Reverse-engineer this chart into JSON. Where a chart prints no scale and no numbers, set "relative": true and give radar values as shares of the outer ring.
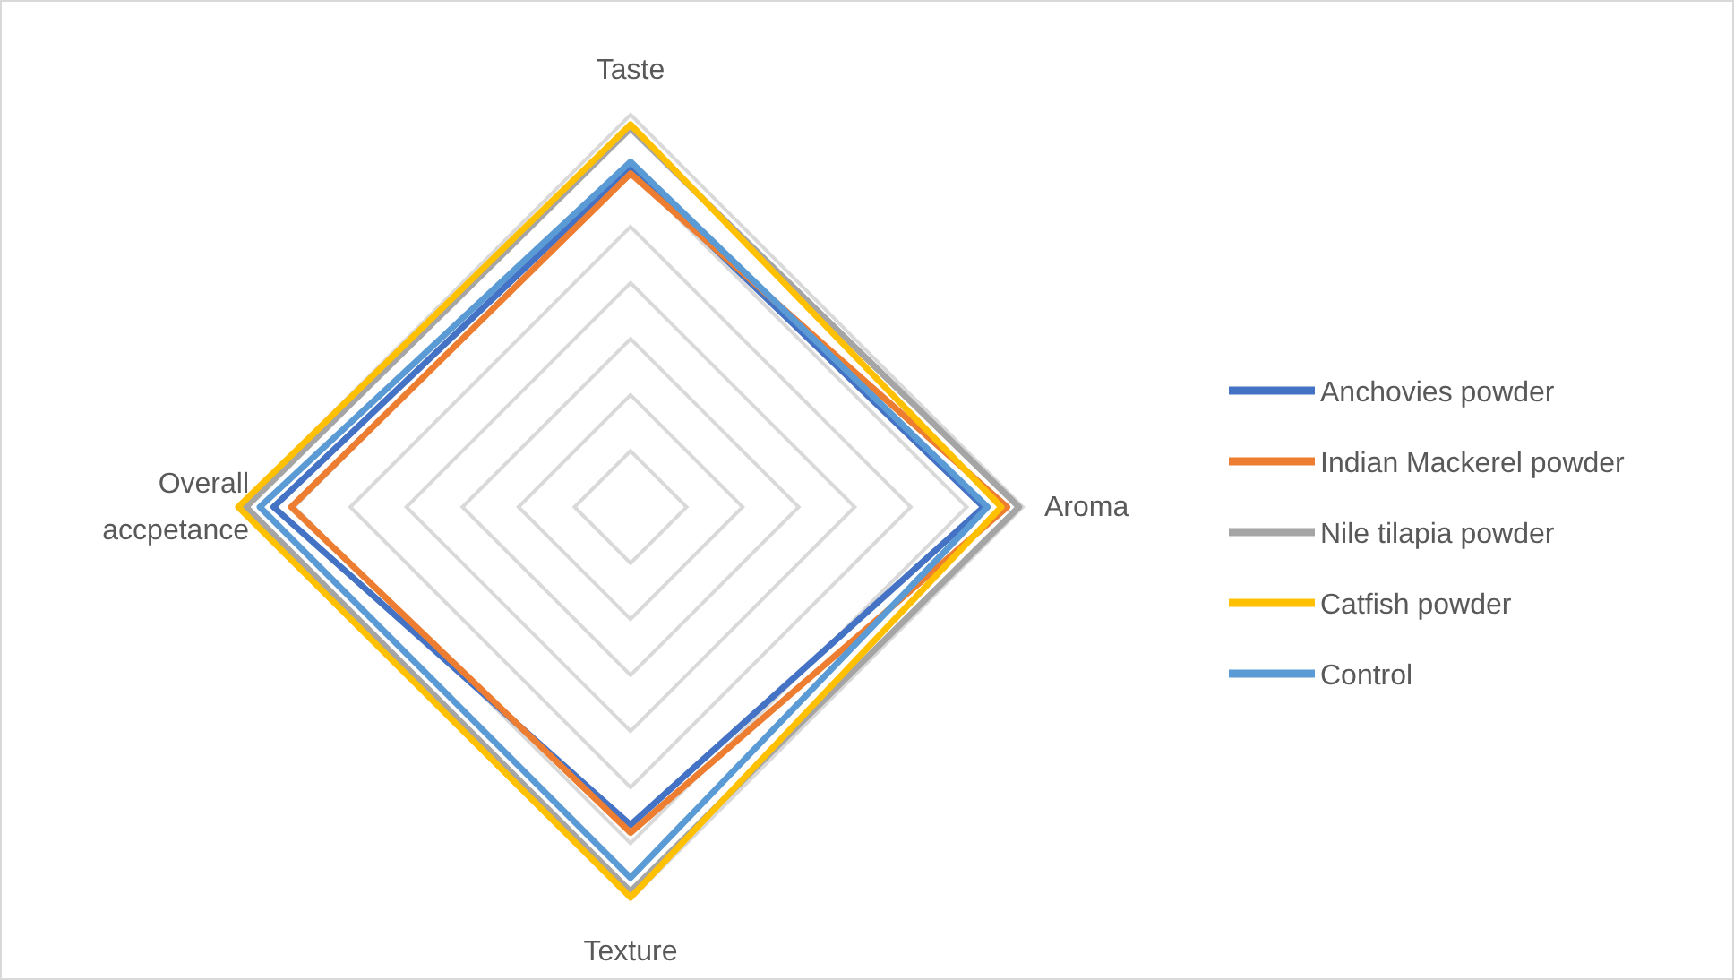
{
  "chart_data": {
    "type": "radar",
    "relative": true,
    "grid": true,
    "legend": "right",
    "categories": [
      "Taste",
      "Aroma",
      "Texture",
      "Overall accpetance"
    ],
    "series": [
      {
        "name": "Anchovies powder",
        "color": "#4472c4",
        "values": [
          0.865,
          0.9,
          0.81,
          0.91
        ]
      },
      {
        "name": "Indian Mackerel powder",
        "color": "#ed7d31",
        "values": [
          0.85,
          0.96,
          0.83,
          0.865
        ]
      },
      {
        "name": "Nile tilapia powder",
        "color": "#a5a5a5",
        "values": [
          0.965,
          0.99,
          0.98,
          0.98
        ]
      },
      {
        "name": "Catfish powder",
        "color": "#ffc000",
        "values": [
          0.975,
          0.945,
          0.995,
          1.0
        ]
      },
      {
        "name": "Control",
        "color": "#5b9bd5",
        "values": [
          0.88,
          0.91,
          0.945,
          0.945
        ]
      }
    ]
  }
}
